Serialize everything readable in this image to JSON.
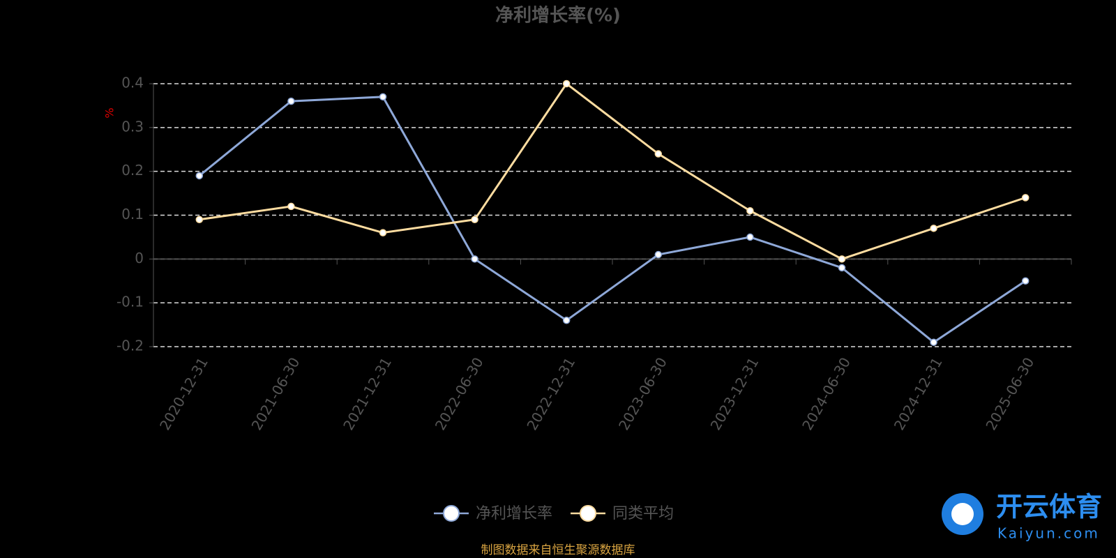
{
  "chart_data": {
    "type": "line",
    "title": "净利增长率(%)",
    "y_label": "%",
    "categories": [
      "2020-12-31",
      "2021-06-30",
      "2021-12-31",
      "2022-06-30",
      "2022-12-31",
      "2023-06-30",
      "2023-12-31",
      "2024-06-30",
      "2024-12-31",
      "2025-06-30"
    ],
    "series": [
      {
        "name": "净利增长率",
        "color": "#8ea8d8",
        "values": [
          0.19,
          0.36,
          0.37,
          0,
          -0.14,
          0.01,
          0.05,
          -0.02,
          -0.19,
          -0.05
        ]
      },
      {
        "name": "同类平均",
        "color": "#fddca0",
        "values": [
          0.09,
          0.12,
          0.06,
          0.09,
          0.4,
          0.24,
          0.11,
          0,
          0.07,
          0.14
        ]
      }
    ],
    "ylim": [
      -0.2,
      0.4
    ],
    "yticks": [
      0.4,
      0.3,
      0.2,
      0.1,
      0,
      -0.1,
      -0.2
    ],
    "grid": true,
    "source": "制图数据来自恒生聚源数据库"
  },
  "watermark": {
    "brand": "开云体育",
    "url": "Kaiyun.com"
  }
}
